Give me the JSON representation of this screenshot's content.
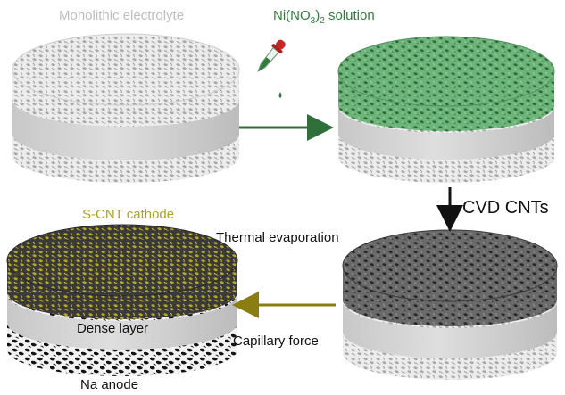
{
  "labels": {
    "monolithic": "Monolithic electrolyte",
    "ni_prefix": "Ni(NO",
    "ni_sub1": "3",
    "ni_mid": ")",
    "ni_sub2": "2",
    "ni_suffix": " solution",
    "cvd": "CVD CNTs",
    "scnt": "S-CNT cathode",
    "thermal": "Thermal evaporation",
    "dense": "Dense layer",
    "capillary": "Capillary force",
    "na": "Na anode"
  },
  "colors": {
    "porous_white": "#e6e6e6",
    "porous_green": "#5ea36a",
    "porous_dark": "#5a5a5a",
    "porous_yellow": "#a89b1e",
    "dense_layer": "#d4d4d4",
    "arrow_green": "#2f6f3a",
    "arrow_olive": "#8a7d12",
    "arrow_black": "#111111"
  },
  "icons": [
    "dropper-icon"
  ],
  "stages": [
    {
      "name": "pristine",
      "top": "white",
      "bottom": "white"
    },
    {
      "name": "ni-infiltrated",
      "top": "green",
      "bottom": "white"
    },
    {
      "name": "cnt-grown",
      "top": "dark",
      "bottom": "white"
    },
    {
      "name": "full-cell",
      "top": "yellow",
      "bottom": "black"
    }
  ]
}
